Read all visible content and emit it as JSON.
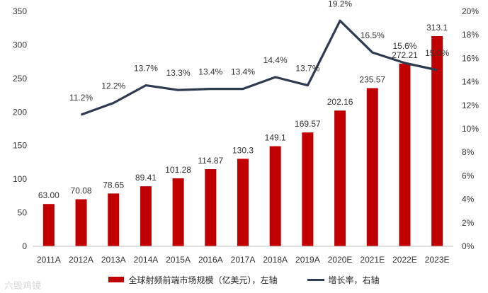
{
  "chart_data": {
    "type": "bar+line",
    "categories": [
      "2011A",
      "2012A",
      "2013A",
      "2014A",
      "2015A",
      "2016A",
      "2017A",
      "2018A",
      "2019A",
      "2020E",
      "2021E",
      "2022E",
      "2023E"
    ],
    "series": [
      {
        "name": "全球射频前端市场规模（亿美元），左轴",
        "type": "bar",
        "axis": "left",
        "values": [
          63.0,
          70.08,
          78.65,
          89.41,
          101.28,
          114.87,
          130.3,
          149.1,
          169.57,
          202.16,
          235.57,
          272.21,
          313.1
        ],
        "labels": [
          "63.00",
          "70.08",
          "78.65",
          "89.41",
          "101.28",
          "114.87",
          "130.3",
          "149.1",
          "169.57",
          "202.16",
          "235.57",
          "272.21",
          "313.1"
        ],
        "color": "#c00000"
      },
      {
        "name": "增长率，右轴",
        "type": "line",
        "axis": "right",
        "values": [
          null,
          11.2,
          12.2,
          13.7,
          13.3,
          13.4,
          13.4,
          14.4,
          13.7,
          19.2,
          16.5,
          15.6,
          15.0
        ],
        "labels": [
          "",
          "11.2%",
          "12.2%",
          "13.7%",
          "13.3%",
          "13.4%",
          "13.4%",
          "14.4%",
          "13.7%",
          "19.2%",
          "16.5%",
          "15.6%",
          "15.0%"
        ],
        "color": "#2e3a4f"
      }
    ],
    "left_axis": {
      "min": 0,
      "max": 350,
      "ticks": [
        "0",
        "50",
        "100",
        "150",
        "200",
        "250",
        "300",
        "350"
      ]
    },
    "right_axis": {
      "min": 0,
      "max": 20,
      "ticks": [
        "0%",
        "2%",
        "4%",
        "6%",
        "8%",
        "10%",
        "12%",
        "14%",
        "16%",
        "18%",
        "20%"
      ]
    },
    "grid": false,
    "legend_position": "bottom"
  },
  "watermark": "六毁鸡镜"
}
